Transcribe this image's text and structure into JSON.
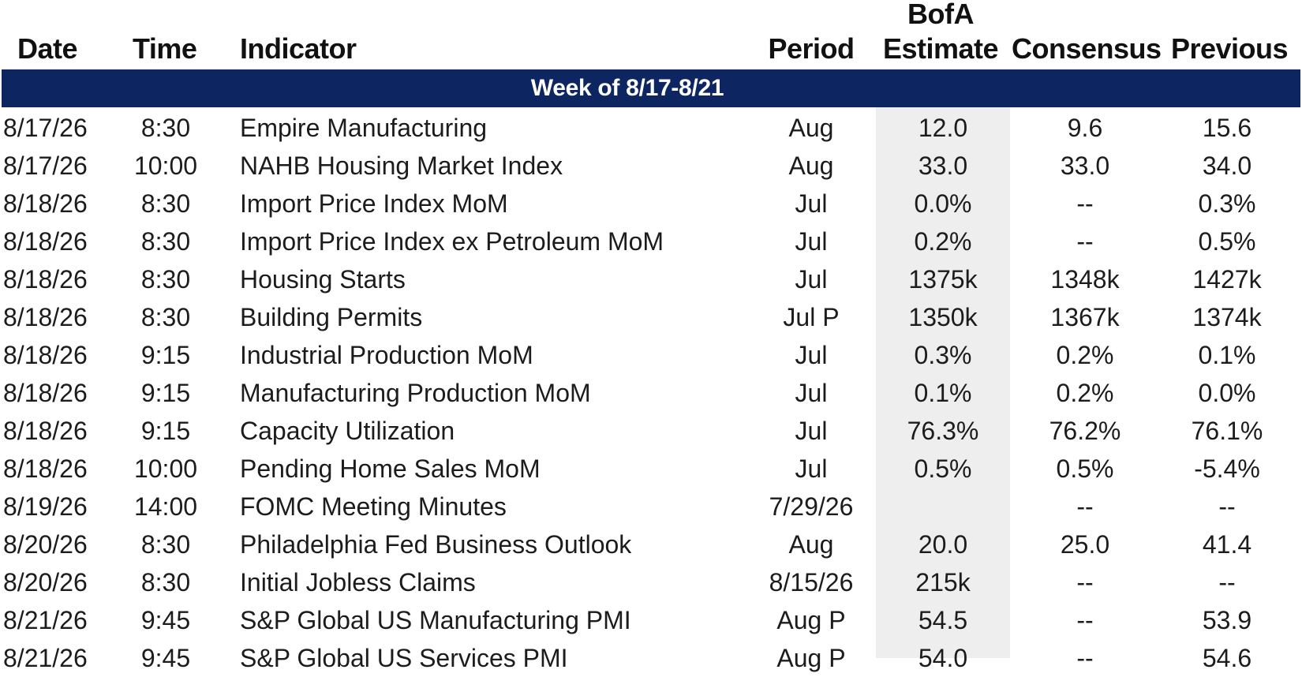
{
  "headers": {
    "date": "Date",
    "time": "Time",
    "indicator": "Indicator",
    "period": "Period",
    "estimate_line1": "BofA",
    "estimate_line2": "Estimate",
    "consensus": "Consensus",
    "previous": "Previous"
  },
  "week_label": "Week of 8/17-8/21",
  "rows": [
    {
      "date": "8/17/26",
      "time": "8:30",
      "indicator": "Empire Manufacturing",
      "period": "Aug",
      "estimate": "12.0",
      "consensus": "9.6",
      "previous": "15.6"
    },
    {
      "date": "8/17/26",
      "time": "10:00",
      "indicator": "NAHB Housing Market Index",
      "period": "Aug",
      "estimate": "33.0",
      "consensus": "33.0",
      "previous": "34.0"
    },
    {
      "date": "8/18/26",
      "time": "8:30",
      "indicator": "Import Price Index MoM",
      "period": "Jul",
      "estimate": "0.0%",
      "consensus": "--",
      "previous": "0.3%"
    },
    {
      "date": "8/18/26",
      "time": "8:30",
      "indicator": "Import Price Index ex Petroleum MoM",
      "period": "Jul",
      "estimate": "0.2%",
      "consensus": "--",
      "previous": "0.5%"
    },
    {
      "date": "8/18/26",
      "time": "8:30",
      "indicator": "Housing Starts",
      "period": "Jul",
      "estimate": "1375k",
      "consensus": "1348k",
      "previous": "1427k"
    },
    {
      "date": "8/18/26",
      "time": "8:30",
      "indicator": "Building Permits",
      "period": "Jul P",
      "estimate": "1350k",
      "consensus": "1367k",
      "previous": "1374k"
    },
    {
      "date": "8/18/26",
      "time": "9:15",
      "indicator": "Industrial Production MoM",
      "period": "Jul",
      "estimate": "0.3%",
      "consensus": "0.2%",
      "previous": "0.1%"
    },
    {
      "date": "8/18/26",
      "time": "9:15",
      "indicator": "Manufacturing Production MoM",
      "period": "Jul",
      "estimate": "0.1%",
      "consensus": "0.2%",
      "previous": "0.0%"
    },
    {
      "date": "8/18/26",
      "time": "9:15",
      "indicator": "Capacity Utilization",
      "period": "Jul",
      "estimate": "76.3%",
      "consensus": "76.2%",
      "previous": "76.1%"
    },
    {
      "date": "8/18/26",
      "time": "10:00",
      "indicator": "Pending Home Sales MoM",
      "period": "Jul",
      "estimate": "0.5%",
      "consensus": "0.5%",
      "previous": "-5.4%"
    },
    {
      "date": "8/19/26",
      "time": "14:00",
      "indicator": "FOMC Meeting Minutes",
      "period": "7/29/26",
      "estimate": "",
      "consensus": "--",
      "previous": "--"
    },
    {
      "date": "8/20/26",
      "time": "8:30",
      "indicator": "Philadelphia Fed Business Outlook",
      "period": "Aug",
      "estimate": "20.0",
      "consensus": "25.0",
      "previous": "41.4"
    },
    {
      "date": "8/20/26",
      "time": "8:30",
      "indicator": "Initial Jobless Claims",
      "period": "8/15/26",
      "estimate": "215k",
      "consensus": "--",
      "previous": "--"
    },
    {
      "date": "8/21/26",
      "time": "9:45",
      "indicator": "S&P Global US Manufacturing PMI",
      "period": "Aug P",
      "estimate": "54.5",
      "consensus": "--",
      "previous": "53.9"
    },
    {
      "date": "8/21/26",
      "time": "9:45",
      "indicator": "S&P Global US Services PMI",
      "period": "Aug P",
      "estimate": "54.0",
      "consensus": "--",
      "previous": "54.6"
    }
  ],
  "colors": {
    "band": "#0d2560",
    "estimate_shade": "#eeeeee",
    "text": "#1c1c1c"
  }
}
